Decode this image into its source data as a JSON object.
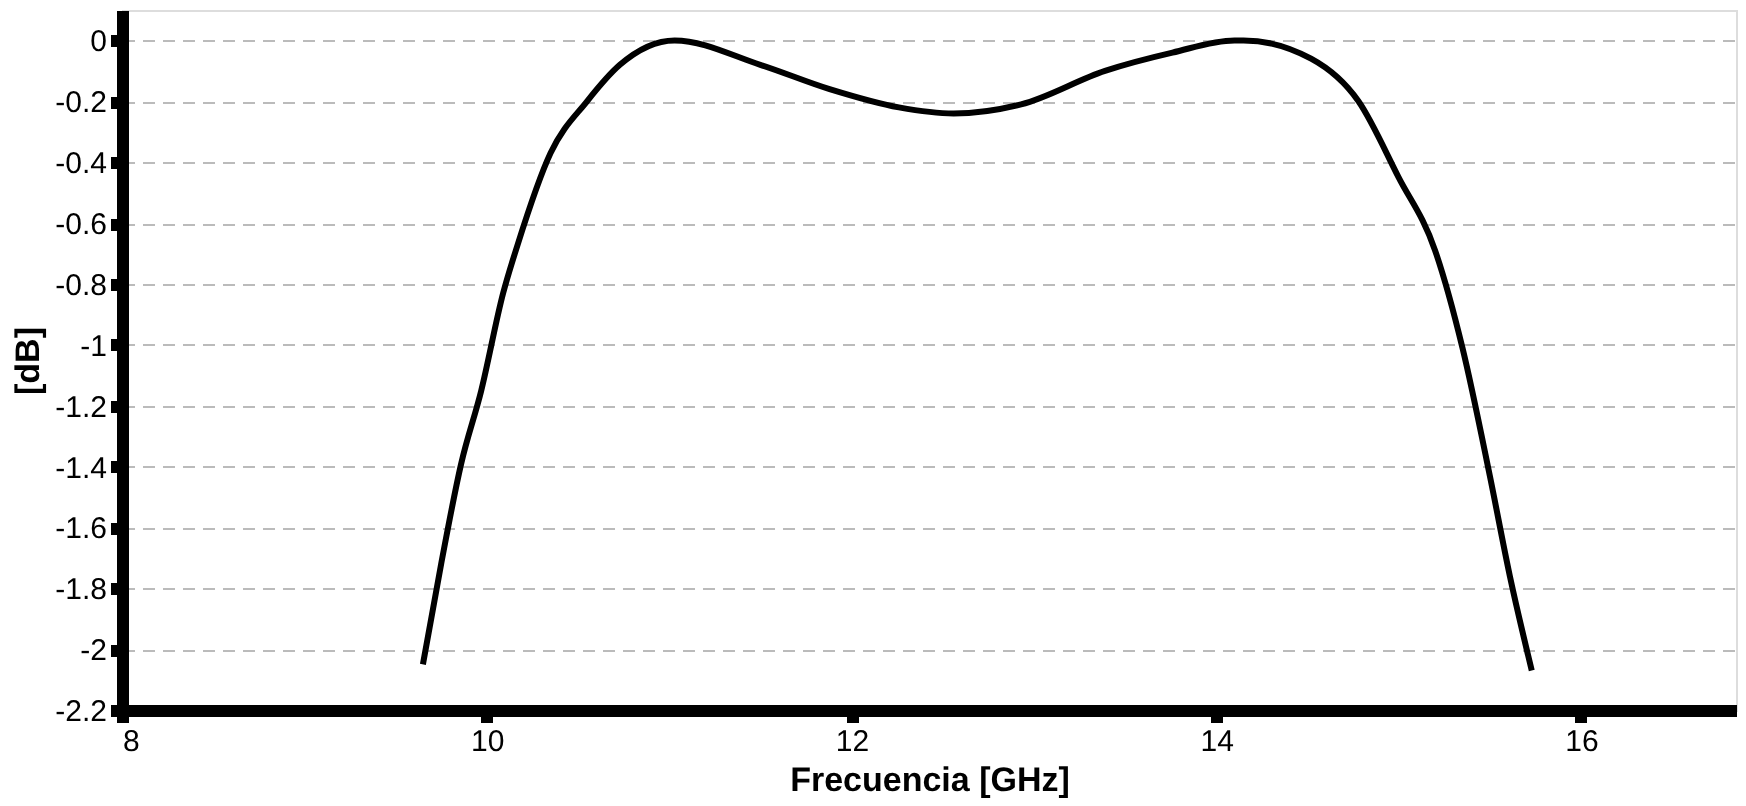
{
  "chart_data": {
    "type": "line",
    "xlabel": "Frecuencia [GHz]",
    "ylabel": "[dB]",
    "xlim": [
      8,
      16.85
    ],
    "xticks": [
      8,
      10,
      12,
      14,
      16
    ],
    "ylim": [
      -2.2,
      0.1
    ],
    "yticks": [
      0,
      -0.2,
      -0.4,
      -0.6,
      -0.8,
      -1,
      -1.2,
      -1.4,
      -1.6,
      -1.8,
      -2,
      -2.2
    ],
    "grid": "y",
    "legend": false,
    "marker": "none",
    "line_style": "solid",
    "series": [
      {
        "color": "#000000",
        "x": [
          9.65,
          9.75,
          9.86,
          9.97,
          10.09,
          10.17,
          10.35,
          10.55,
          10.73,
          11.03,
          11.5,
          11.88,
          12.26,
          12.56,
          12.93,
          13.39,
          13.76,
          14.1,
          14.15,
          14.52,
          14.78,
          15.0,
          15.2,
          15.35,
          15.5,
          15.61,
          15.73
        ],
        "values": [
          -2.05,
          -1.72,
          -1.39,
          -1.15,
          -0.83,
          -0.67,
          -0.37,
          -0.2,
          -0.08,
          0,
          -0.08,
          -0.16,
          -0.22,
          -0.24,
          -0.21,
          -0.1,
          -0.04,
          0,
          0,
          -0.06,
          -0.2,
          -0.45,
          -0.69,
          -1.01,
          -1.43,
          -1.76,
          -2.07
        ]
      }
    ]
  }
}
